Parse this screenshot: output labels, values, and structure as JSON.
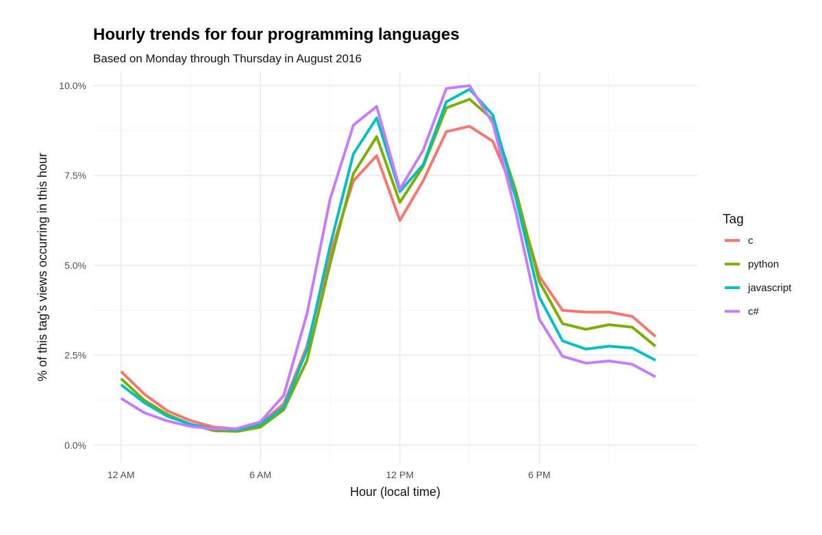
{
  "chart_data": {
    "type": "line",
    "title": "Hourly trends for four programming languages",
    "subtitle": "Based on Monday through Thursday in August 2016",
    "xlabel": "Hour (local time)",
    "ylabel": "% of this tag's views occurring in this hour",
    "x": [
      0,
      1,
      2,
      3,
      4,
      5,
      6,
      7,
      8,
      9,
      10,
      11,
      12,
      13,
      14,
      15,
      16,
      17,
      18,
      19,
      20,
      21,
      22,
      23
    ],
    "xlim": [
      -1.2,
      24.8
    ],
    "ylim": [
      -0.5,
      10.4
    ],
    "x_ticks": [
      {
        "value": 0,
        "label": "12 AM"
      },
      {
        "value": 6,
        "label": "6 AM"
      },
      {
        "value": 12,
        "label": "12 PM"
      },
      {
        "value": 18,
        "label": "6 PM"
      }
    ],
    "y_ticks": [
      {
        "value": 0.0,
        "label": "0.0%"
      },
      {
        "value": 2.5,
        "label": "2.5%"
      },
      {
        "value": 5.0,
        "label": "5.0%"
      },
      {
        "value": 7.5,
        "label": "7.5%"
      },
      {
        "value": 10.0,
        "label": "10.0%"
      }
    ],
    "grid": true,
    "legend": {
      "title": "Tag",
      "position": "right"
    },
    "series": [
      {
        "name": "c",
        "color": "#F8766D",
        "values": [
          2.05,
          1.42,
          0.95,
          0.68,
          0.5,
          0.45,
          0.6,
          1.15,
          2.75,
          5.3,
          7.35,
          8.05,
          6.25,
          7.35,
          8.72,
          8.87,
          8.45,
          6.9,
          4.7,
          3.75,
          3.7,
          3.7,
          3.58,
          3.02
        ]
      },
      {
        "name": "python",
        "color": "#7CAE00",
        "values": [
          1.85,
          1.25,
          0.85,
          0.58,
          0.4,
          0.38,
          0.5,
          0.98,
          2.35,
          5.05,
          7.55,
          8.58,
          6.75,
          7.75,
          9.38,
          9.62,
          9.05,
          7.05,
          4.55,
          3.38,
          3.22,
          3.35,
          3.28,
          2.75
        ]
      },
      {
        "name": "javascript",
        "color": "#00BFC4",
        "values": [
          1.68,
          1.18,
          0.8,
          0.58,
          0.45,
          0.42,
          0.58,
          1.05,
          2.65,
          5.55,
          8.1,
          9.1,
          7.05,
          7.8,
          9.55,
          9.9,
          9.18,
          6.85,
          4.12,
          2.9,
          2.67,
          2.75,
          2.7,
          2.36
        ]
      },
      {
        "name": "c#",
        "color": "#C77CFF",
        "values": [
          1.3,
          0.9,
          0.67,
          0.52,
          0.45,
          0.46,
          0.65,
          1.38,
          3.65,
          6.85,
          8.9,
          9.42,
          7.12,
          8.2,
          9.92,
          10.0,
          8.95,
          6.45,
          3.5,
          2.47,
          2.28,
          2.34,
          2.25,
          1.9
        ]
      }
    ]
  }
}
